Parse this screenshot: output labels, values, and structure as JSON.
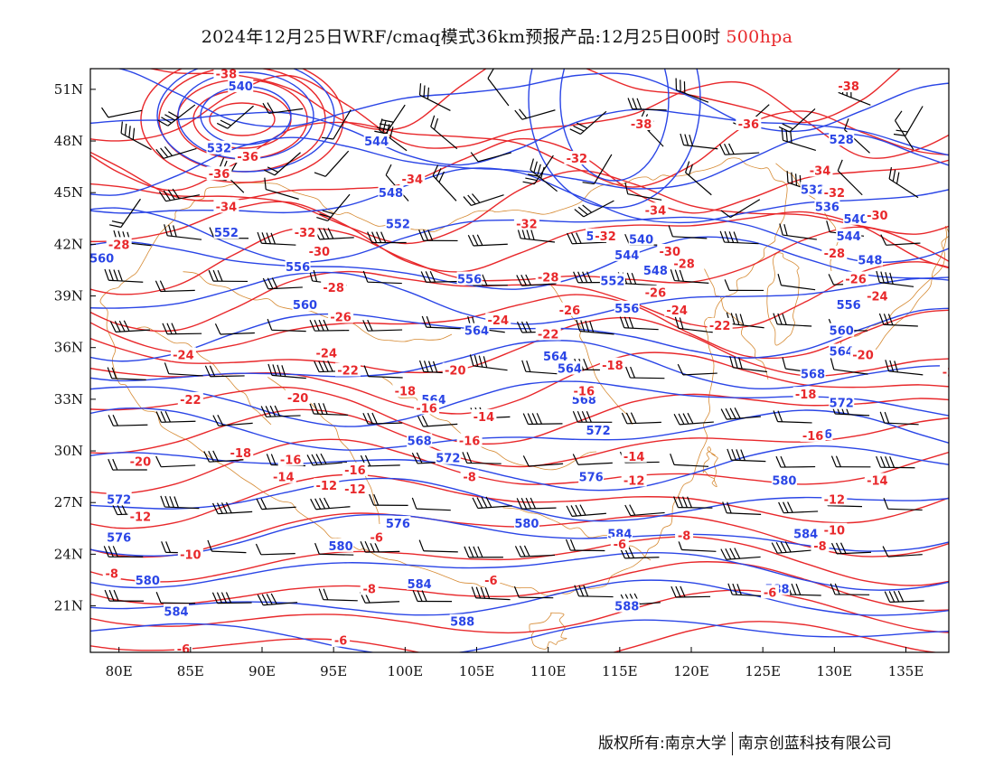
{
  "header": {
    "title": "2024年12月25日WRF/cmaq模式36km预报产品:12月25日00时",
    "level": "500hpa"
  },
  "footer": {
    "copyright": "版权所有:南京大学",
    "company": "南京创蓝科技有限公司"
  },
  "axes": {
    "lon_labels": [
      "80E",
      "85E",
      "90E",
      "95E",
      "100E",
      "105E",
      "110E",
      "115E",
      "120E",
      "125E",
      "130E",
      "135E"
    ],
    "lat_labels": [
      "51N",
      "48N",
      "45N",
      "42N",
      "39N",
      "36N",
      "33N",
      "30N",
      "27N",
      "24N",
      "21N"
    ]
  },
  "colors": {
    "height": "#2a45e6",
    "temperature": "#e8282b",
    "wind": "#000000",
    "coast": "#d68a33"
  },
  "height_labels": [
    {
      "t": "540",
      "lon": 88.5,
      "lat": 51.2
    },
    {
      "t": "532",
      "lon": 87.0,
      "lat": 47.6
    },
    {
      "t": "544",
      "lon": 98.0,
      "lat": 48.0
    },
    {
      "t": "548",
      "lon": 99.0,
      "lat": 45.0
    },
    {
      "t": "552",
      "lon": 87.5,
      "lat": 42.7
    },
    {
      "t": "552",
      "lon": 99.5,
      "lat": 43.2
    },
    {
      "t": "556",
      "lon": 92.5,
      "lat": 40.7
    },
    {
      "t": "556",
      "lon": 104.5,
      "lat": 40.0
    },
    {
      "t": "560",
      "lon": 78.8,
      "lat": 41.2
    },
    {
      "t": "560",
      "lon": 93.0,
      "lat": 38.5
    },
    {
      "t": "564",
      "lon": 105.0,
      "lat": 37.0
    },
    {
      "t": "564",
      "lon": 110.5,
      "lat": 35.5
    },
    {
      "t": "564",
      "lon": 102.0,
      "lat": 33.0
    },
    {
      "t": "568",
      "lon": 112.5,
      "lat": 33.0
    },
    {
      "t": "568",
      "lon": 101.0,
      "lat": 30.6
    },
    {
      "t": "572",
      "lon": 103.0,
      "lat": 29.6
    },
    {
      "t": "572",
      "lon": 113.5,
      "lat": 31.2
    },
    {
      "t": "572",
      "lon": 130.5,
      "lat": 32.8
    },
    {
      "t": "576",
      "lon": 113.0,
      "lat": 28.5
    },
    {
      "t": "576",
      "lon": 129.0,
      "lat": 31.0
    },
    {
      "t": "576",
      "lon": 99.5,
      "lat": 25.8
    },
    {
      "t": "576",
      "lon": 80.0,
      "lat": 25.0
    },
    {
      "t": "572",
      "lon": 80.0,
      "lat": 27.2
    },
    {
      "t": "580",
      "lon": 95.5,
      "lat": 24.5
    },
    {
      "t": "580",
      "lon": 108.5,
      "lat": 25.8
    },
    {
      "t": "580",
      "lon": 126.5,
      "lat": 28.3
    },
    {
      "t": "580",
      "lon": 82.0,
      "lat": 22.5
    },
    {
      "t": "584",
      "lon": 101.0,
      "lat": 22.3
    },
    {
      "t": "584",
      "lon": 115.0,
      "lat": 25.2
    },
    {
      "t": "584",
      "lon": 128.0,
      "lat": 25.2
    },
    {
      "t": "584",
      "lon": 84.0,
      "lat": 20.7
    },
    {
      "t": "588",
      "lon": 115.5,
      "lat": 21.0
    },
    {
      "t": "588",
      "lon": 126.0,
      "lat": 22.0
    },
    {
      "t": "588",
      "lon": 104.0,
      "lat": 20.1
    },
    {
      "t": "528",
      "lon": 130.5,
      "lat": 48.1
    },
    {
      "t": "532",
      "lon": 128.5,
      "lat": 45.2
    },
    {
      "t": "536",
      "lon": 129.5,
      "lat": 44.2
    },
    {
      "t": "540",
      "lon": 131.5,
      "lat": 43.5
    },
    {
      "t": "544",
      "lon": 131.0,
      "lat": 42.5
    },
    {
      "t": "548",
      "lon": 132.5,
      "lat": 41.1
    },
    {
      "t": "536",
      "lon": 113.5,
      "lat": 42.5
    },
    {
      "t": "540",
      "lon": 116.5,
      "lat": 42.3
    },
    {
      "t": "544",
      "lon": 115.5,
      "lat": 41.4
    },
    {
      "t": "548",
      "lon": 117.5,
      "lat": 40.5
    },
    {
      "t": "552",
      "lon": 114.5,
      "lat": 39.9
    },
    {
      "t": "556",
      "lon": 115.5,
      "lat": 38.3
    },
    {
      "t": "556",
      "lon": 131.0,
      "lat": 38.5
    },
    {
      "t": "560",
      "lon": 130.5,
      "lat": 37.0
    },
    {
      "t": "564",
      "lon": 130.5,
      "lat": 35.8
    },
    {
      "t": "564",
      "lon": 111.5,
      "lat": 34.8
    },
    {
      "t": "568",
      "lon": 128.5,
      "lat": 34.5
    }
  ],
  "temp_labels": [
    {
      "t": "-38",
      "lon": 87.5,
      "lat": 51.9
    },
    {
      "t": "-38",
      "lon": 116.5,
      "lat": 49.0
    },
    {
      "t": "-38",
      "lon": 131.0,
      "lat": 51.2
    },
    {
      "t": "-36",
      "lon": 124.0,
      "lat": 49.0
    },
    {
      "t": "-36",
      "lon": 87.0,
      "lat": 46.1
    },
    {
      "t": "-36",
      "lon": 89.0,
      "lat": 47.1
    },
    {
      "t": "-34",
      "lon": 87.5,
      "lat": 44.2
    },
    {
      "t": "-34",
      "lon": 100.5,
      "lat": 45.8
    },
    {
      "t": "-34",
      "lon": 117.5,
      "lat": 44.0
    },
    {
      "t": "-34",
      "lon": 129.0,
      "lat": 46.3
    },
    {
      "t": "-32",
      "lon": 112.0,
      "lat": 47.0
    },
    {
      "t": "-32",
      "lon": 93.0,
      "lat": 42.7
    },
    {
      "t": "-32",
      "lon": 108.5,
      "lat": 43.2
    },
    {
      "t": "-32",
      "lon": 114.0,
      "lat": 42.5
    },
    {
      "t": "-32",
      "lon": 130.0,
      "lat": 45.0
    },
    {
      "t": "-30",
      "lon": 118.5,
      "lat": 41.6
    },
    {
      "t": "-30",
      "lon": 94.0,
      "lat": 41.6
    },
    {
      "t": "-30",
      "lon": 133.0,
      "lat": 43.7
    },
    {
      "t": "-28",
      "lon": 80.0,
      "lat": 42.0
    },
    {
      "t": "-28",
      "lon": 119.5,
      "lat": 40.9
    },
    {
      "t": "-28",
      "lon": 110.0,
      "lat": 40.1
    },
    {
      "t": "-28",
      "lon": 130.0,
      "lat": 41.5
    },
    {
      "t": "-28",
      "lon": 95.0,
      "lat": 39.5
    },
    {
      "t": "-26",
      "lon": 131.5,
      "lat": 40.0
    },
    {
      "t": "-26",
      "lon": 111.5,
      "lat": 38.2
    },
    {
      "t": "-26",
      "lon": 117.5,
      "lat": 39.2
    },
    {
      "t": "-26",
      "lon": 95.5,
      "lat": 37.8
    },
    {
      "t": "-24",
      "lon": 133.0,
      "lat": 39.0
    },
    {
      "t": "-24",
      "lon": 106.5,
      "lat": 37.6
    },
    {
      "t": "-24",
      "lon": 119.0,
      "lat": 38.2
    },
    {
      "t": "-24",
      "lon": 84.5,
      "lat": 35.6
    },
    {
      "t": "-24",
      "lon": 94.5,
      "lat": 35.7
    },
    {
      "t": "-22",
      "lon": 110.0,
      "lat": 36.8
    },
    {
      "t": "-22",
      "lon": 122.0,
      "lat": 37.3
    },
    {
      "t": "-22",
      "lon": 96.0,
      "lat": 34.7
    },
    {
      "t": "-22",
      "lon": 85.0,
      "lat": 33.0
    },
    {
      "t": "-20",
      "lon": 132.0,
      "lat": 35.6
    },
    {
      "t": "-20",
      "lon": 103.5,
      "lat": 34.7
    },
    {
      "t": "-20",
      "lon": 92.5,
      "lat": 33.1
    },
    {
      "t": "-20",
      "lon": 81.5,
      "lat": 29.4
    },
    {
      "t": "-2",
      "lon": 138.0,
      "lat": 34.6
    },
    {
      "t": "-18",
      "lon": 114.5,
      "lat": 35.0
    },
    {
      "t": "-18",
      "lon": 128.0,
      "lat": 33.3
    },
    {
      "t": "-18",
      "lon": 100.0,
      "lat": 33.5
    },
    {
      "t": "-18",
      "lon": 88.5,
      "lat": 29.9
    },
    {
      "t": "-16",
      "lon": 112.5,
      "lat": 33.5
    },
    {
      "t": "-16",
      "lon": 128.5,
      "lat": 30.9
    },
    {
      "t": "-16",
      "lon": 101.5,
      "lat": 32.5
    },
    {
      "t": "-16",
      "lon": 92.0,
      "lat": 29.5
    },
    {
      "t": "-16",
      "lon": 96.5,
      "lat": 28.9
    },
    {
      "t": "-16",
      "lon": 104.5,
      "lat": 30.6
    },
    {
      "t": "-14",
      "lon": 105.5,
      "lat": 32.0
    },
    {
      "t": "-14",
      "lon": 116.0,
      "lat": 29.7
    },
    {
      "t": "-14",
      "lon": 91.5,
      "lat": 28.5
    },
    {
      "t": "-14",
      "lon": 133.0,
      "lat": 28.3
    },
    {
      "t": "-12",
      "lon": 94.5,
      "lat": 28.0
    },
    {
      "t": "-12",
      "lon": 96.5,
      "lat": 27.8
    },
    {
      "t": "-12",
      "lon": 116.0,
      "lat": 28.3
    },
    {
      "t": "-12",
      "lon": 81.5,
      "lat": 26.2
    },
    {
      "t": "-12",
      "lon": 130.0,
      "lat": 27.2
    },
    {
      "t": "-10",
      "lon": 85.0,
      "lat": 24.0
    },
    {
      "t": "-10",
      "lon": 130.0,
      "lat": 25.4
    },
    {
      "t": "-8",
      "lon": 104.5,
      "lat": 28.5
    },
    {
      "t": "-8",
      "lon": 79.5,
      "lat": 22.9
    },
    {
      "t": "-8",
      "lon": 97.5,
      "lat": 22.0
    },
    {
      "t": "-8",
      "lon": 119.5,
      "lat": 25.1
    },
    {
      "t": "-8",
      "lon": 129.0,
      "lat": 24.5
    },
    {
      "t": "-6",
      "lon": 98.0,
      "lat": 25.0
    },
    {
      "t": "-6",
      "lon": 115.0,
      "lat": 24.6
    },
    {
      "t": "-6",
      "lon": 106.0,
      "lat": 22.5
    },
    {
      "t": "-6",
      "lon": 125.5,
      "lat": 21.8
    },
    {
      "t": "-6",
      "lon": 84.5,
      "lat": 18.5
    },
    {
      "t": "-6",
      "lon": 95.5,
      "lat": 19.0
    }
  ]
}
